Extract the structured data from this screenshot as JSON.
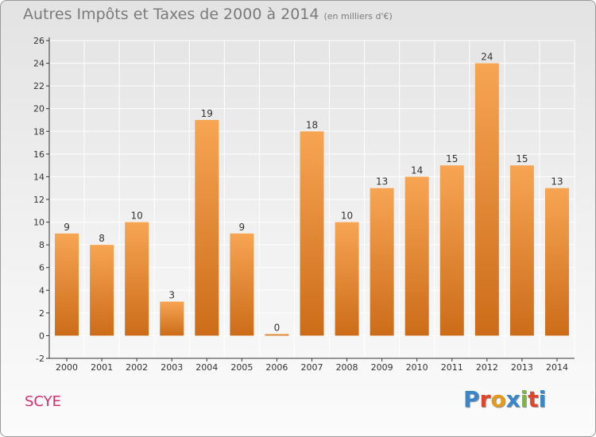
{
  "header": {
    "title": "Autres Impôts et Taxes de 2000 à 2014",
    "subtitle": "(en milliers d'€)"
  },
  "footer": {
    "commune": "SCYE",
    "logo": "Proxiti",
    "logo_colors": [
      "#3a86c8",
      "#e2462a",
      "#e69a1c",
      "#3a86c8",
      "#7bb93a",
      "#e2462a",
      "#3a86c8"
    ]
  },
  "colors": {
    "bar_top": "#f7a553",
    "bar_bottom": "#cc6c19",
    "grid": "#ffffff",
    "axis": "#333333",
    "commune": "#d32e6e"
  },
  "chart_data": {
    "type": "bar",
    "title": "Autres Impôts et Taxes de 2000 à 2014",
    "subtitle": "(en milliers d'€)",
    "categories": [
      "2000",
      "2001",
      "2002",
      "2003",
      "2004",
      "2005",
      "2006",
      "2007",
      "2008",
      "2009",
      "2010",
      "2011",
      "2012",
      "2013",
      "2014"
    ],
    "values": [
      9,
      8,
      10,
      3,
      19,
      9,
      0,
      18,
      10,
      13,
      14,
      15,
      24,
      15,
      13
    ],
    "ylim": [
      -2,
      26
    ],
    "yticks": [
      -2,
      0,
      2,
      4,
      6,
      8,
      10,
      12,
      14,
      16,
      18,
      20,
      22,
      24,
      26
    ],
    "grid": true,
    "data_labels": true
  }
}
